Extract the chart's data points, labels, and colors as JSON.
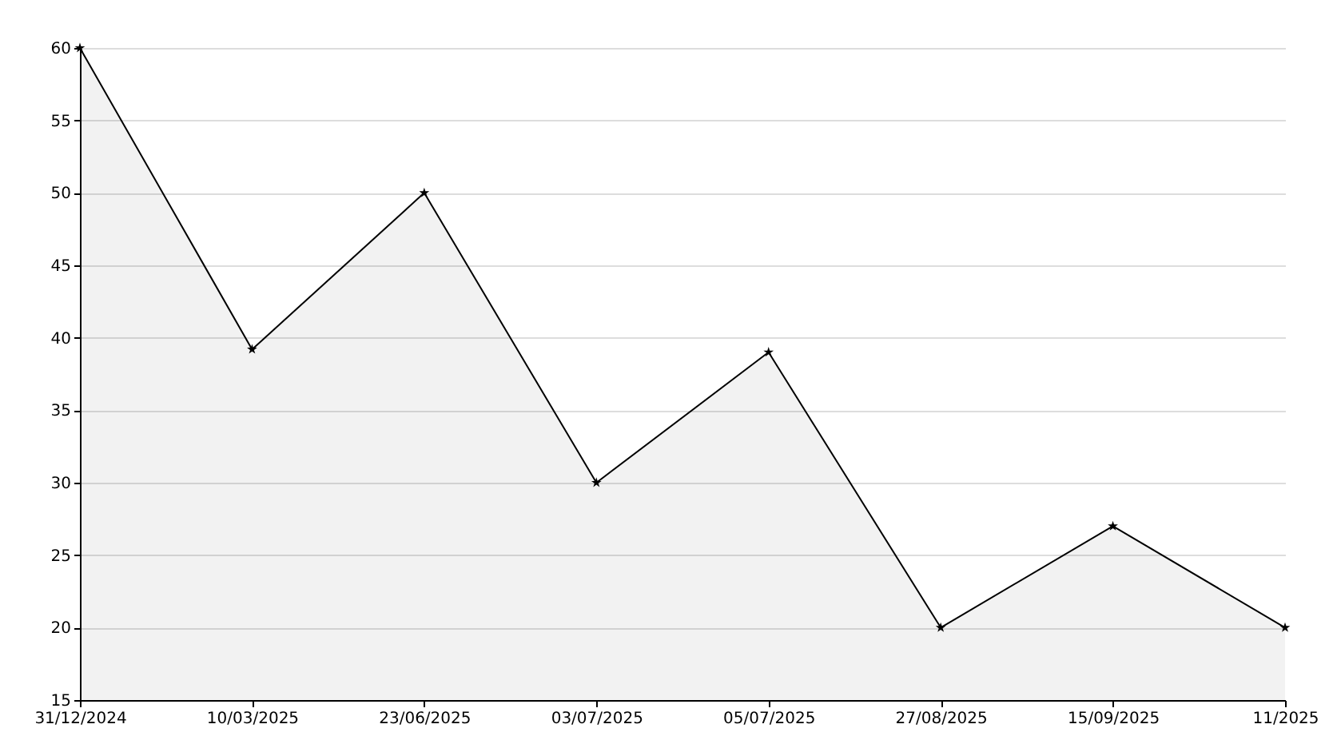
{
  "chart_data": {
    "type": "area",
    "categories": [
      "31/12/2024",
      "10/03/2025",
      "23/06/2025",
      "03/07/2025",
      "05/07/2025",
      "27/08/2025",
      "15/09/2025",
      "11/2025"
    ],
    "series": [
      {
        "color": "#000000",
        "values": [
          60,
          39.2,
          50,
          30,
          39,
          20,
          27,
          20
        ]
      }
    ],
    "ylim": [
      15,
      60
    ],
    "yticks": [
      15,
      20,
      25,
      30,
      35,
      40,
      45,
      50,
      55,
      60
    ],
    "grid": "y",
    "marker": "star",
    "line_style": "solid"
  }
}
